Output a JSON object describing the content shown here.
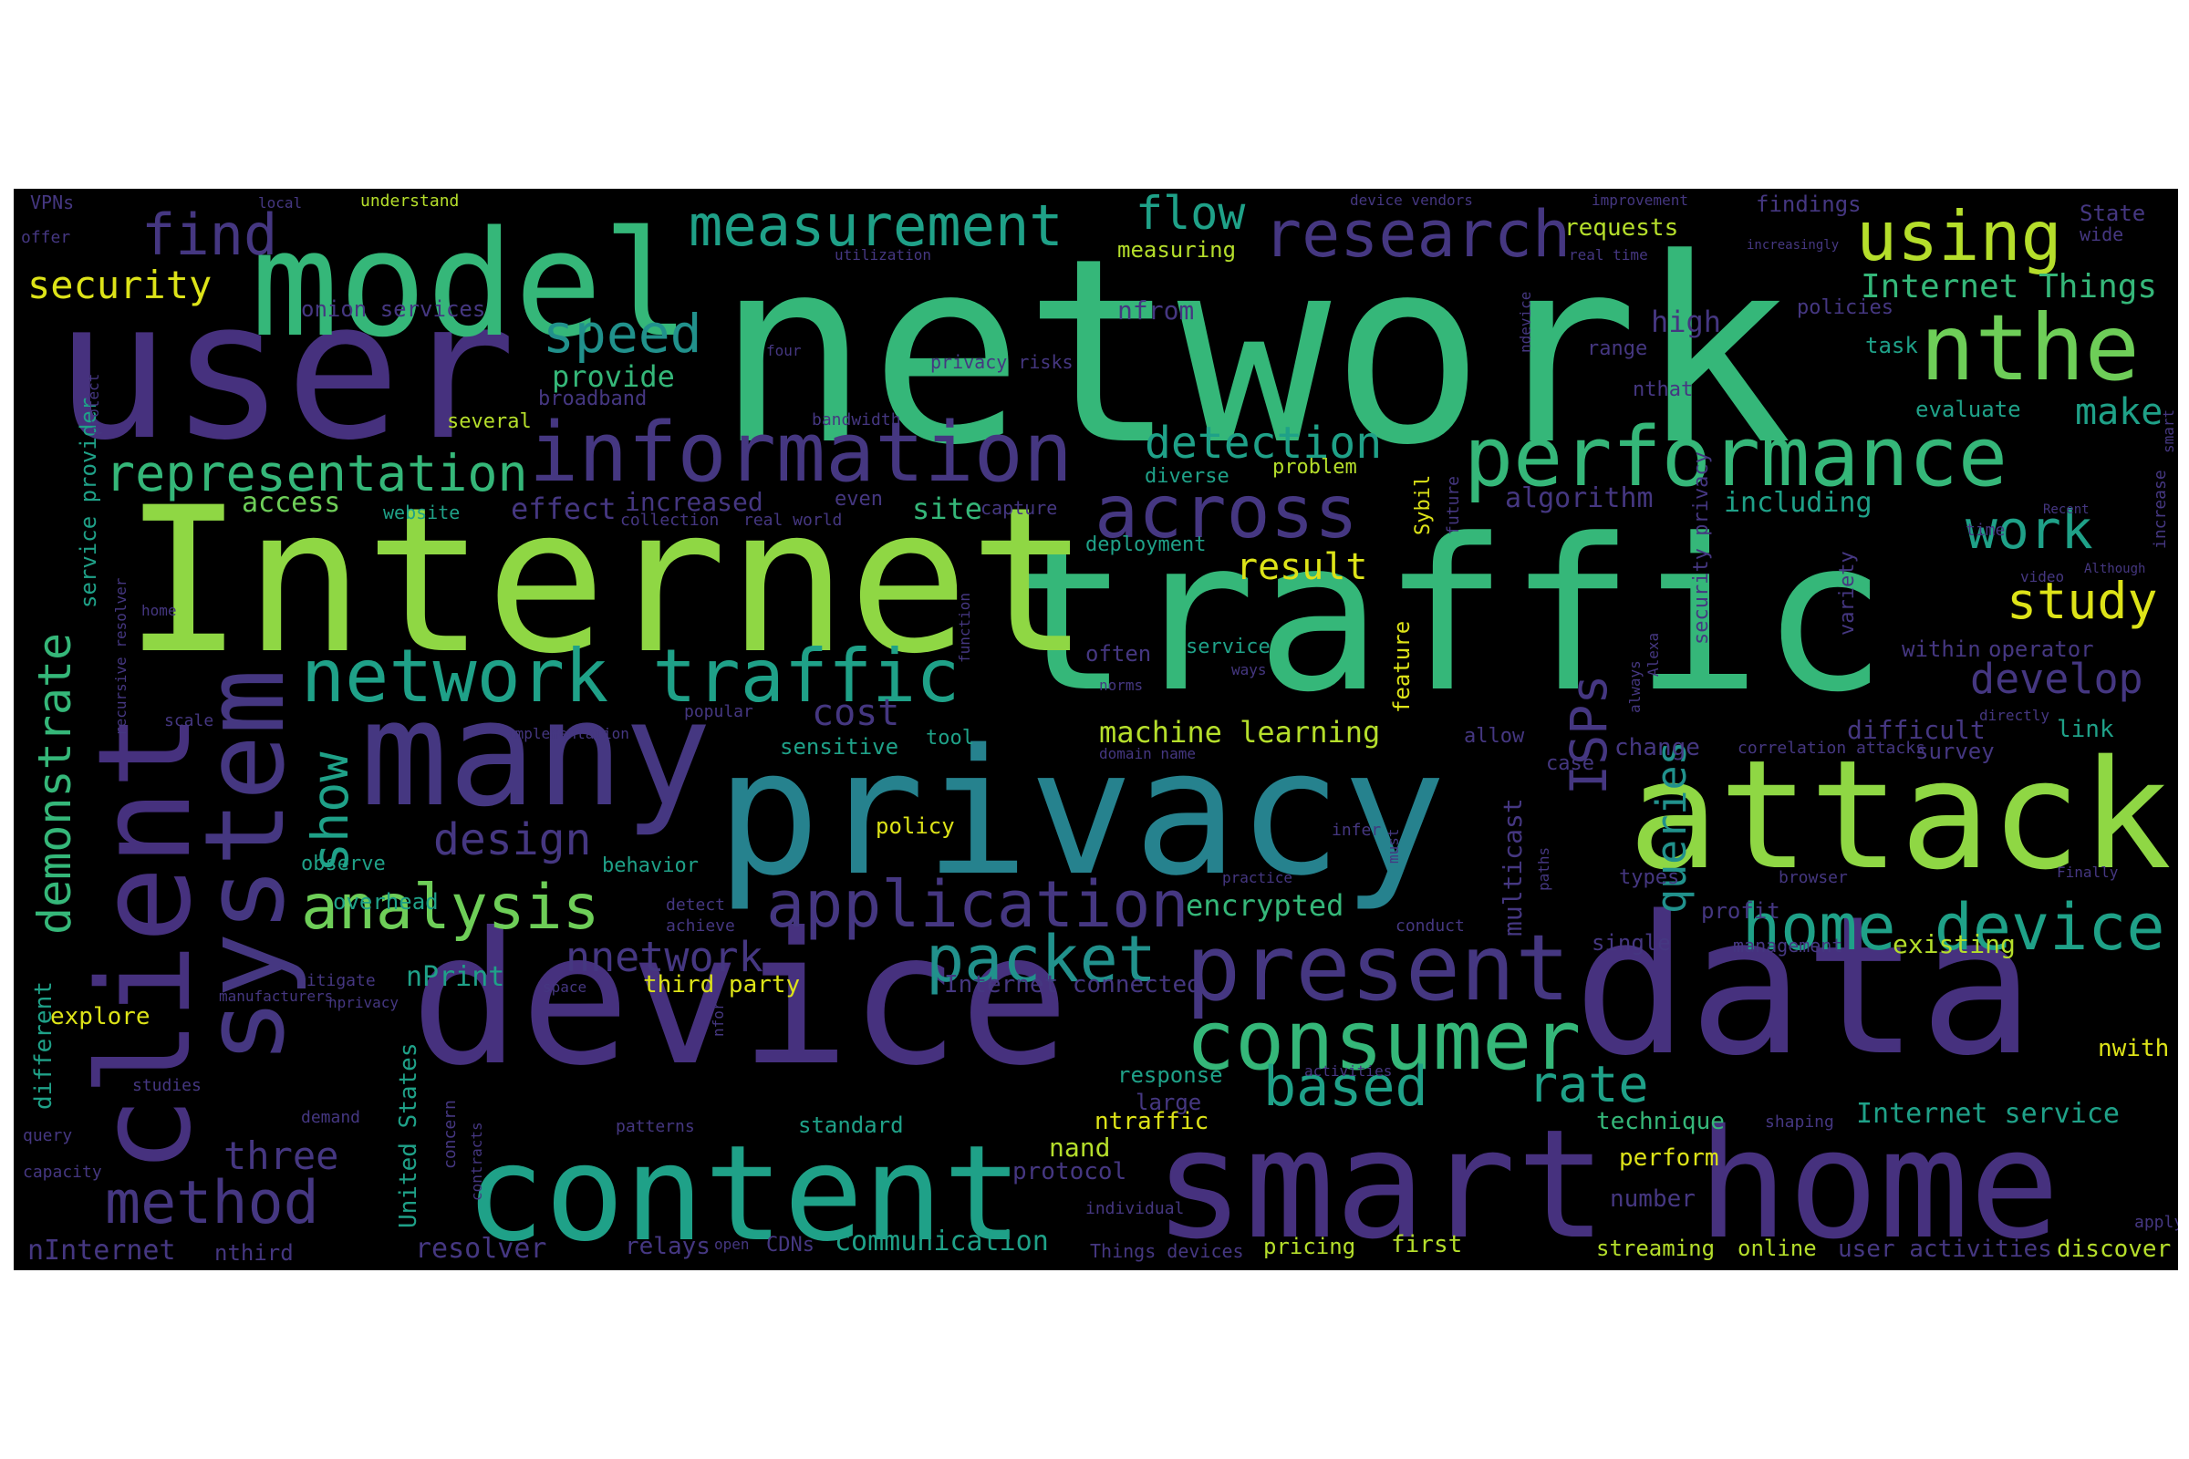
{
  "palette": {
    "background": "#000000",
    "page": "#ffffff",
    "dark_purple": "#46317e",
    "purple": "#453781",
    "indigo": "#3b528b",
    "blue": "#33638d",
    "teal": "#26828e",
    "cyan": "#21918c",
    "sea": "#1fa188",
    "green": "#35b779",
    "lime": "#6ece58",
    "light_lime": "#8fd744",
    "yellow_green": "#b5de2b",
    "yellow": "#dde318"
  },
  "words": [
    {
      "text": "network",
      "color": "#35b779"
    },
    {
      "text": "traffic",
      "color": "#35b779"
    },
    {
      "text": "Internet",
      "color": "#8fd744"
    },
    {
      "text": "user",
      "color": "#46317e"
    },
    {
      "text": "privacy",
      "color": "#26828e"
    },
    {
      "text": "device",
      "color": "#46317e"
    },
    {
      "text": "data",
      "color": "#46317e"
    },
    {
      "text": "model",
      "color": "#35b779"
    },
    {
      "text": "attack",
      "color": "#8fd744"
    },
    {
      "text": "smart home",
      "color": "#46317e"
    },
    {
      "text": "content",
      "color": "#1fa188"
    },
    {
      "text": "client",
      "color": "#46317e"
    },
    {
      "text": "system",
      "color": "#453781"
    },
    {
      "text": "many",
      "color": "#453781"
    },
    {
      "text": "information",
      "color": "#453781"
    },
    {
      "text": "performance",
      "color": "#35b779"
    },
    {
      "text": "network traffic",
      "color": "#1fa188"
    },
    {
      "text": "present",
      "color": "#453781"
    },
    {
      "text": "consumer",
      "color": "#35b779"
    },
    {
      "text": "home device",
      "color": "#1fa188"
    },
    {
      "text": "nthe",
      "color": "#6ece58"
    },
    {
      "text": "measurement",
      "color": "#1fa188"
    },
    {
      "text": "research",
      "color": "#453781"
    },
    {
      "text": "using",
      "color": "#b5de2b"
    },
    {
      "text": "across",
      "color": "#453781"
    },
    {
      "text": "application",
      "color": "#453781"
    },
    {
      "text": "method",
      "color": "#453781"
    },
    {
      "text": "analysis",
      "color": "#6ece58"
    },
    {
      "text": "packet",
      "color": "#21918c"
    },
    {
      "text": "demonstrate",
      "color": "#35b779"
    },
    {
      "text": "representation",
      "color": "#35b779"
    },
    {
      "text": "find",
      "color": "#453781"
    },
    {
      "text": "speed",
      "color": "#21918c"
    },
    {
      "text": "flow",
      "color": "#1fa188"
    },
    {
      "text": "detection",
      "color": "#1fa188"
    },
    {
      "text": "show",
      "color": "#1fa188"
    },
    {
      "text": "based",
      "color": "#1fa188"
    },
    {
      "text": "rate",
      "color": "#1fa188"
    },
    {
      "text": "work",
      "color": "#1fa188"
    },
    {
      "text": "study",
      "color": "#dde318"
    },
    {
      "text": "develop",
      "color": "#453781"
    },
    {
      "text": "ISPs",
      "color": "#453781"
    },
    {
      "text": "queries",
      "color": "#21918c"
    },
    {
      "text": "security",
      "color": "#dde318"
    },
    {
      "text": "design",
      "color": "#453781"
    },
    {
      "text": "nnetwork",
      "color": "#453781"
    },
    {
      "text": "three",
      "color": "#453781"
    },
    {
      "text": "cost",
      "color": "#453781"
    },
    {
      "text": "result",
      "color": "#dde318"
    },
    {
      "text": "make",
      "color": "#1fa188"
    },
    {
      "text": "Internet Things",
      "color": "#35b779"
    },
    {
      "text": "machine learning",
      "color": "#b5de2b"
    },
    {
      "text": "encrypted",
      "color": "#35b779"
    },
    {
      "text": "provide",
      "color": "#35b779"
    },
    {
      "text": "access",
      "color": "#6ece58"
    },
    {
      "text": "effect",
      "color": "#453781"
    },
    {
      "text": "increased",
      "color": "#453781"
    },
    {
      "text": "site",
      "color": "#35b779"
    },
    {
      "text": "algorithm",
      "color": "#453781"
    },
    {
      "text": "including",
      "color": "#1fa188"
    },
    {
      "text": "high",
      "color": "#453781"
    },
    {
      "text": "nfrom",
      "color": "#453781"
    },
    {
      "text": "measuring",
      "color": "#b5de2b"
    },
    {
      "text": "requests",
      "color": "#b5de2b"
    },
    {
      "text": "findings",
      "color": "#453781"
    },
    {
      "text": "State",
      "color": "#453781"
    },
    {
      "text": "wide",
      "color": "#453781"
    },
    {
      "text": "policies",
      "color": "#453781"
    },
    {
      "text": "task",
      "color": "#1fa188"
    },
    {
      "text": "evaluate",
      "color": "#1fa188"
    },
    {
      "text": "range",
      "color": "#453781"
    },
    {
      "text": "nthat",
      "color": "#453781"
    },
    {
      "text": "onion services",
      "color": "#453781"
    },
    {
      "text": "several",
      "color": "#b5de2b"
    },
    {
      "text": "broadband",
      "color": "#453781"
    },
    {
      "text": "privacy risks",
      "color": "#453781"
    },
    {
      "text": "bandwidth",
      "color": "#453781"
    },
    {
      "text": "diverse",
      "color": "#1fa188"
    },
    {
      "text": "problem",
      "color": "#b5de2b"
    },
    {
      "text": "website",
      "color": "#1fa188"
    },
    {
      "text": "collection",
      "color": "#453781"
    },
    {
      "text": "real world",
      "color": "#453781"
    },
    {
      "text": "even",
      "color": "#453781"
    },
    {
      "text": "capture",
      "color": "#453781"
    },
    {
      "text": "deployment",
      "color": "#1fa188"
    },
    {
      "text": "service provider",
      "color": "#1fa188"
    },
    {
      "text": "home",
      "color": "#453781"
    },
    {
      "text": "recursive resolver",
      "color": "#453781"
    },
    {
      "text": "scale",
      "color": "#453781"
    },
    {
      "text": "observe",
      "color": "#1fa188"
    },
    {
      "text": "overhead",
      "color": "#1fa188"
    },
    {
      "text": "nPrint",
      "color": "#1fa188"
    },
    {
      "text": "explore",
      "color": "#dde318"
    },
    {
      "text": "mitigate",
      "color": "#453781"
    },
    {
      "text": "manufacturers",
      "color": "#453781"
    },
    {
      "text": "nprivacy",
      "color": "#453781"
    },
    {
      "text": "different",
      "color": "#1fa188"
    },
    {
      "text": "query",
      "color": "#453781"
    },
    {
      "text": "capacity",
      "color": "#453781"
    },
    {
      "text": "studies",
      "color": "#453781"
    },
    {
      "text": "demand",
      "color": "#453781"
    },
    {
      "text": "nInternet",
      "color": "#453781"
    },
    {
      "text": "nthird",
      "color": "#453781"
    },
    {
      "text": "resolver",
      "color": "#453781"
    },
    {
      "text": "United States",
      "color": "#1fa188"
    },
    {
      "text": "concern",
      "color": "#453781"
    },
    {
      "text": "contracts",
      "color": "#453781"
    },
    {
      "text": "relays",
      "color": "#453781"
    },
    {
      "text": "open",
      "color": "#453781"
    },
    {
      "text": "CDNs",
      "color": "#453781"
    },
    {
      "text": "communication",
      "color": "#1fa188"
    },
    {
      "text": "Things devices",
      "color": "#453781"
    },
    {
      "text": "pricing",
      "color": "#b5de2b"
    },
    {
      "text": "first",
      "color": "#b5de2b"
    },
    {
      "text": "streaming",
      "color": "#b5de2b"
    },
    {
      "text": "online",
      "color": "#b5de2b"
    },
    {
      "text": "user activities",
      "color": "#453781"
    },
    {
      "text": "discover",
      "color": "#b5de2b"
    },
    {
      "text": "apply",
      "color": "#453781"
    },
    {
      "text": "nwith",
      "color": "#dde318"
    },
    {
      "text": "Internet service",
      "color": "#1fa188"
    },
    {
      "text": "shaping",
      "color": "#453781"
    },
    {
      "text": "technique",
      "color": "#35b779"
    },
    {
      "text": "perform",
      "color": "#dde318"
    },
    {
      "text": "number",
      "color": "#453781"
    },
    {
      "text": "nand",
      "color": "#b5de2b"
    },
    {
      "text": "protocol",
      "color": "#453781"
    },
    {
      "text": "ntraffic",
      "color": "#dde318"
    },
    {
      "text": "large",
      "color": "#453781"
    },
    {
      "text": "response",
      "color": "#1fa188"
    },
    {
      "text": "standard",
      "color": "#1fa188"
    },
    {
      "text": "patterns",
      "color": "#453781"
    },
    {
      "text": "activities",
      "color": "#453781"
    },
    {
      "text": "individual",
      "color": "#453781"
    },
    {
      "text": "third party",
      "color": "#dde318"
    },
    {
      "text": "Internet connected",
      "color": "#453781"
    },
    {
      "text": "space",
      "color": "#453781"
    },
    {
      "text": "nfor",
      "color": "#453781"
    },
    {
      "text": "multicast",
      "color": "#453781"
    },
    {
      "text": "case",
      "color": "#453781"
    },
    {
      "text": "paths",
      "color": "#453781"
    },
    {
      "text": "conduct",
      "color": "#453781"
    },
    {
      "text": "single",
      "color": "#453781"
    },
    {
      "text": "profit",
      "color": "#453781"
    },
    {
      "text": "management",
      "color": "#453781"
    },
    {
      "text": "existing",
      "color": "#b5de2b"
    },
    {
      "text": "types",
      "color": "#453781"
    },
    {
      "text": "browser",
      "color": "#453781"
    },
    {
      "text": "Finally",
      "color": "#453781"
    },
    {
      "text": "practice",
      "color": "#453781"
    },
    {
      "text": "infer",
      "color": "#453781"
    },
    {
      "text": "must",
      "color": "#453781"
    },
    {
      "text": "detect",
      "color": "#453781"
    },
    {
      "text": "achieve",
      "color": "#453781"
    },
    {
      "text": "behavior",
      "color": "#1fa188"
    },
    {
      "text": "policy",
      "color": "#dde318"
    },
    {
      "text": "sensitive",
      "color": "#1fa188"
    },
    {
      "text": "tool",
      "color": "#1fa188"
    },
    {
      "text": "allow",
      "color": "#453781"
    },
    {
      "text": "change",
      "color": "#453781"
    },
    {
      "text": "correlation attacks",
      "color": "#453781"
    },
    {
      "text": "survey",
      "color": "#453781"
    },
    {
      "text": "difficult",
      "color": "#453781"
    },
    {
      "text": "link",
      "color": "#1fa188"
    },
    {
      "text": "directly",
      "color": "#453781"
    },
    {
      "text": "always",
      "color": "#453781"
    },
    {
      "text": "domain name",
      "color": "#453781"
    },
    {
      "text": "popular",
      "color": "#453781"
    },
    {
      "text": "norms",
      "color": "#453781"
    },
    {
      "text": "ways",
      "color": "#453781"
    },
    {
      "text": "service",
      "color": "#1fa188"
    },
    {
      "text": "often",
      "color": "#453781"
    },
    {
      "text": "feature",
      "color": "#dde318"
    },
    {
      "text": "function",
      "color": "#453781"
    },
    {
      "text": "implementation",
      "color": "#453781"
    },
    {
      "text": "Alexa",
      "color": "#453781"
    },
    {
      "text": "security privacy",
      "color": "#453781"
    },
    {
      "text": "variety",
      "color": "#453781"
    },
    {
      "text": "within",
      "color": "#453781"
    },
    {
      "text": "operator",
      "color": "#453781"
    },
    {
      "text": "video",
      "color": "#453781"
    },
    {
      "text": "Although",
      "color": "#453781"
    },
    {
      "text": "time",
      "color": "#453781"
    },
    {
      "text": "Recent",
      "color": "#453781"
    },
    {
      "text": "smart",
      "color": "#453781"
    },
    {
      "text": "increase",
      "color": "#453781"
    },
    {
      "text": "Sybil",
      "color": "#dde318"
    },
    {
      "text": "future",
      "color": "#453781"
    },
    {
      "text": "ndevice",
      "color": "#453781"
    },
    {
      "text": "device vendors",
      "color": "#453781"
    },
    {
      "text": "improvement",
      "color": "#453781"
    },
    {
      "text": "increasingly",
      "color": "#453781"
    },
    {
      "text": "real time",
      "color": "#453781"
    },
    {
      "text": "utilization",
      "color": "#453781"
    },
    {
      "text": "understand",
      "color": "#b5de2b"
    },
    {
      "text": "local",
      "color": "#453781"
    },
    {
      "text": "VPNs",
      "color": "#453781"
    },
    {
      "text": "offer",
      "color": "#453781"
    },
    {
      "text": "protect",
      "color": "#453781"
    },
    {
      "text": "four",
      "color": "#453781"
    }
  ]
}
